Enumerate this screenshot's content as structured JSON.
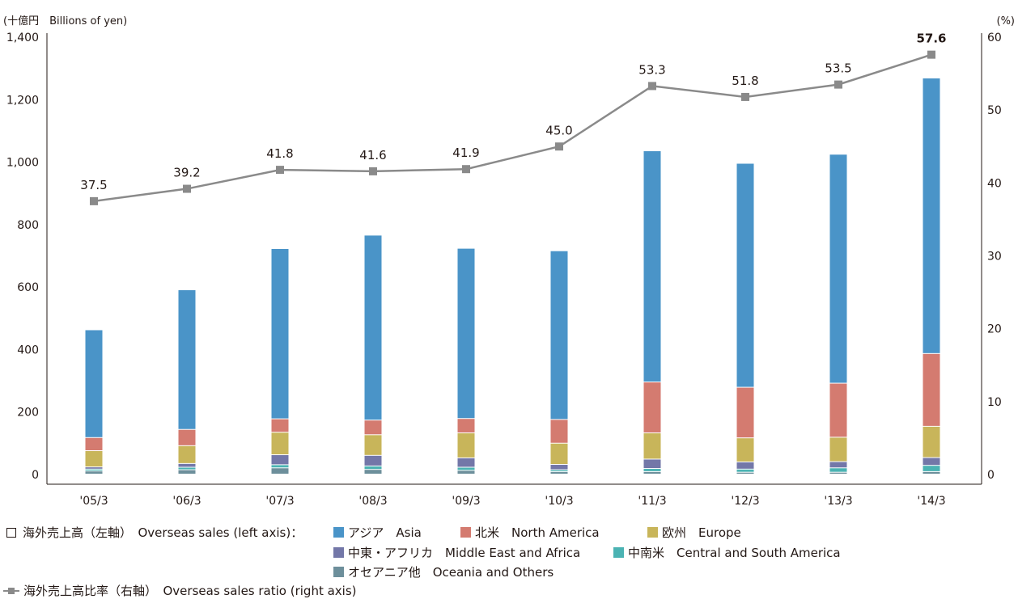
{
  "chart_data": {
    "type": "bar",
    "stacked": true,
    "categories": [
      "'05/3",
      "'06/3",
      "'07/3",
      "'08/3",
      "'09/3",
      "'10/3",
      "'11/3",
      "'12/3",
      "'13/3",
      "'14/3"
    ],
    "left_axis": {
      "label": "(十億円　Billions of yen)",
      "ylim": [
        0,
        1400
      ],
      "ticks": [
        "0",
        "200",
        "400",
        "600",
        "800",
        "1,000",
        "1,200",
        "1,400"
      ]
    },
    "right_axis": {
      "label": "(%)",
      "ylim": [
        0,
        60
      ],
      "ticks": [
        "0",
        "10",
        "20",
        "30",
        "40",
        "50",
        "60"
      ]
    },
    "series": [
      {
        "name": "オセアニア他　Oceania and Others",
        "color": "#6d8f9b",
        "values": [
          10,
          14,
          20,
          15,
          12,
          8,
          8,
          6,
          6,
          8
        ]
      },
      {
        "name": "中南米　Central and South America",
        "color": "#4bb3b3",
        "values": [
          6,
          8,
          10,
          11,
          10,
          6,
          10,
          10,
          14,
          20
        ]
      },
      {
        "name": "中東・アフリカ　Middle East and Africa",
        "color": "#7377a8",
        "values": [
          7,
          12,
          32,
          34,
          30,
          17,
          30,
          23,
          20,
          25
        ]
      },
      {
        "name": "欧州　Europe",
        "color": "#c8b55a",
        "values": [
          52,
          57,
          72,
          66,
          80,
          68,
          84,
          77,
          78,
          100
        ]
      },
      {
        "name": "北米　North America",
        "color": "#d47b70",
        "values": [
          42,
          52,
          43,
          47,
          46,
          76,
          163,
          162,
          173,
          233
        ]
      },
      {
        "name": "アジア　Asia",
        "color": "#4a94c8",
        "values": [
          345,
          447,
          545,
          592,
          545,
          540,
          740,
          717,
          733,
          882
        ]
      }
    ],
    "line": {
      "name": "海外売上高比率（右軸）　Overseas sales ratio (right axis)",
      "color": "#8a8a8a",
      "values": [
        37.5,
        39.2,
        41.8,
        41.6,
        41.9,
        45.0,
        53.3,
        51.8,
        53.5,
        57.6
      ],
      "labels": [
        "37.5",
        "39.2",
        "41.8",
        "41.6",
        "41.9",
        "45.0",
        "53.3",
        "51.8",
        "53.5",
        "57.6"
      ]
    }
  },
  "legend": {
    "overseas_sales_label": "海外売上高（左軸）　Overseas sales (left axis)：",
    "asia": "アジア　Asia",
    "north_america": "北米　North America",
    "europe": "欧州　Europe",
    "mideast_africa": "中東・アフリカ　Middle East and Africa",
    "central_south_america": "中南米　Central and South America",
    "oceania_others": "オセアニア他　Oceania and Others",
    "ratio_label": "海外売上高比率（右軸）　Overseas sales ratio (right axis)"
  }
}
